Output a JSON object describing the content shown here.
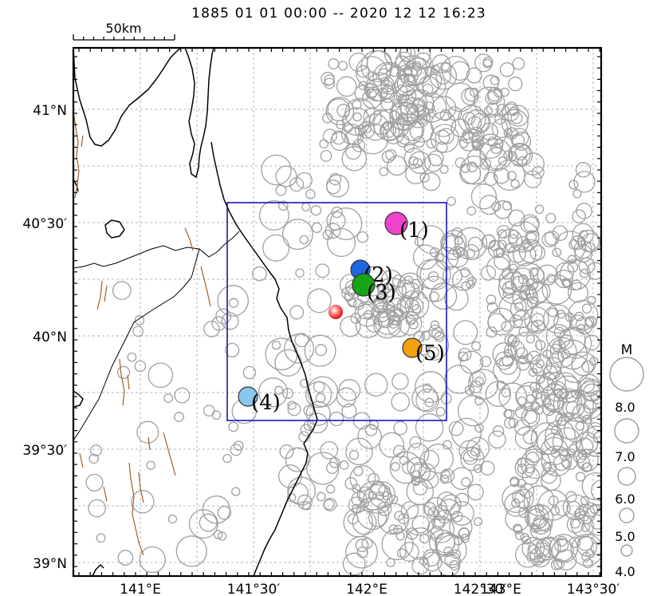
{
  "header": {
    "period": "1885 01 01 00:00 -- 2020 12 12 16:23"
  },
  "scale_bar": {
    "label": "50km"
  },
  "axes": {
    "lat_labels": [
      "41°N",
      "40°30′",
      "40°N",
      "39°30′",
      "39°N"
    ],
    "lon_labels": [
      "141°E",
      "141°30′",
      "142°E",
      "142°30′",
      "143°E",
      "143°30′"
    ]
  },
  "legend": {
    "title": "M",
    "magnitudes": [
      "8.0",
      "7.0",
      "6.0",
      "5.0",
      "4.0"
    ]
  },
  "labeled_events": [
    {
      "label": "(1)",
      "color": "#ee44cc"
    },
    {
      "label": "(2)",
      "color": "#1f66e0"
    },
    {
      "label": "(3)",
      "color": "#16a316"
    },
    {
      "label": "(4)",
      "color": "#88c8ec"
    },
    {
      "label": "(5)",
      "color": "#f5a10f"
    }
  ],
  "colors": {
    "background_circles": "#a0a0a0",
    "study_area_box": "#1515c0",
    "coastline": "#000000",
    "active_faults": "#a0612a",
    "grid": "#b4b4b4",
    "epicenter_marker": "#e02020"
  }
}
